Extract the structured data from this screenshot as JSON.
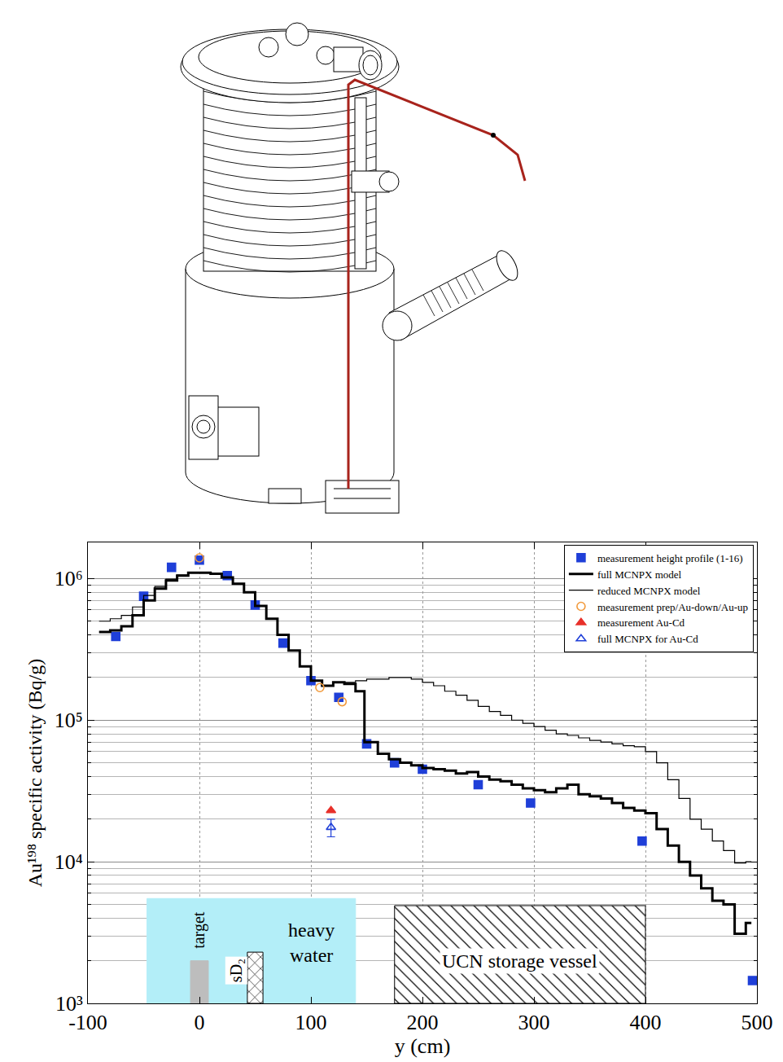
{
  "chart_data": {
    "type": "scatter",
    "x_label": "y (cm)",
    "y_label": "Au¹⁹⁸ specific activity (Bq/g)",
    "xlim": [
      -100,
      500
    ],
    "xticks": [
      -100,
      0,
      100,
      200,
      300,
      400,
      500
    ],
    "ylim": [
      1000,
      1800000
    ],
    "yticks": [
      {
        "value": 1000,
        "label": "10³"
      },
      {
        "value": 10000,
        "label": "10⁴"
      },
      {
        "value": 100000,
        "label": "10⁵"
      },
      {
        "value": 1000000,
        "label": "10⁶"
      }
    ],
    "log": "y",
    "grid": true,
    "legend": "upper right",
    "series": [
      {
        "name": "measurement height profile (1-16)",
        "type": "scatter",
        "marker": "square",
        "color": "#1f3fd8",
        "x": [
          -75,
          -50,
          -25,
          0,
          25,
          50,
          75,
          100,
          125,
          150,
          175,
          200,
          250,
          297,
          397,
          496
        ],
        "values": [
          390000,
          750000,
          1200000,
          1350000,
          1050000,
          650000,
          350000,
          190000,
          145000,
          68000,
          50000,
          45000,
          35000,
          26000,
          14000,
          1450
        ]
      },
      {
        "name": "full MCNPX model",
        "type": "line",
        "line_style": "step",
        "color": "#000000",
        "x": [
          -90,
          -80,
          -70,
          -60,
          -50,
          -40,
          -30,
          -20,
          -10,
          0,
          10,
          20,
          30,
          40,
          50,
          60,
          70,
          80,
          90,
          100,
          110,
          120,
          130,
          140,
          148,
          160,
          170,
          180,
          190,
          200,
          210,
          220,
          230,
          240,
          250,
          260,
          270,
          280,
          290,
          300,
          310,
          320,
          330,
          340,
          350,
          360,
          370,
          380,
          390,
          400,
          410,
          420,
          430,
          440,
          450,
          460,
          470,
          480,
          490,
          495
        ],
        "values": [
          420000,
          430000,
          460000,
          550000,
          700000,
          850000,
          970000,
          1050000,
          1100000,
          1100000,
          1080000,
          1020000,
          920000,
          800000,
          640000,
          520000,
          400000,
          310000,
          240000,
          190000,
          175000,
          185000,
          180000,
          160000,
          70000,
          58000,
          53000,
          50000,
          48000,
          46000,
          45000,
          44000,
          42000,
          43000,
          40000,
          38000,
          37000,
          35000,
          33000,
          32000,
          31000,
          33000,
          35000,
          30000,
          29000,
          28000,
          26000,
          24000,
          23000,
          22000,
          17000,
          13000,
          10000,
          8000,
          6500,
          5300,
          5000,
          3100,
          3700,
          3700
        ]
      },
      {
        "name": "reduced MCNPX model",
        "type": "line",
        "line_style": "step",
        "color": "#000000",
        "x": [
          -90,
          -80,
          -70,
          -60,
          -50,
          -40,
          -30,
          -20,
          -10,
          0,
          10,
          20,
          30,
          40,
          50,
          60,
          70,
          80,
          90,
          100,
          110,
          120,
          130,
          140,
          150,
          160,
          170,
          180,
          190,
          200,
          210,
          220,
          230,
          240,
          250,
          260,
          270,
          280,
          290,
          300,
          310,
          320,
          330,
          340,
          350,
          360,
          370,
          380,
          390,
          400,
          410,
          420,
          430,
          440,
          450,
          460,
          470,
          480,
          490,
          495
        ],
        "values": [
          500000,
          520000,
          550000,
          630000,
          760000,
          880000,
          990000,
          1060000,
          1100000,
          1100000,
          1080000,
          1020000,
          920000,
          800000,
          640000,
          520000,
          400000,
          310000,
          240000,
          190000,
          175000,
          185000,
          185000,
          190000,
          195000,
          195000,
          200000,
          200000,
          195000,
          185000,
          175000,
          160000,
          150000,
          138000,
          125000,
          115000,
          108000,
          100000,
          95000,
          90000,
          85000,
          80000,
          78000,
          75000,
          72000,
          70000,
          68000,
          66000,
          65000,
          60000,
          50000,
          38000,
          28000,
          20000,
          17000,
          14000,
          12000,
          9800,
          10000,
          10000
        ]
      },
      {
        "name": "measurement prep/Au-down/Au-up",
        "type": "scatter",
        "marker": "circle-open",
        "color": "#f29a3c",
        "x": [
          0,
          108,
          128
        ],
        "values": [
          1400000,
          170000,
          135000
        ]
      },
      {
        "name": "measurement Au-Cd",
        "type": "scatter",
        "marker": "triangle",
        "color": "#e8302a",
        "x": [
          118
        ],
        "values": [
          23000
        ]
      },
      {
        "name": "full MCNPX for Au-Cd",
        "type": "scatter",
        "marker": "triangle-open",
        "color": "#1f3fd8",
        "x": [
          118
        ],
        "values": [
          17500
        ],
        "error": [
          2500
        ]
      }
    ],
    "regions": [
      {
        "text": "heavy water",
        "x0": -47,
        "x1": 140,
        "y0": 1000,
        "y1": 5500,
        "color": "#b3eef8",
        "label_x": 100,
        "label_y": 2700
      },
      {
        "text": "target",
        "x0": -8,
        "x1": 8,
        "y0": 1000,
        "y1": 2000,
        "color": "#bdbdbd",
        "label_x": 0,
        "label_y": 3300
      },
      {
        "text": "sD₂",
        "x0": 43,
        "x1": 57,
        "y0": 1000,
        "y1": 2300,
        "color": "#ffffff",
        "marker": "crosshatch",
        "label_x": 33,
        "label_y": 1700
      },
      {
        "text": "UCN storage vessel",
        "x0": 175,
        "x1": 400,
        "y0": 1000,
        "y1": 4900,
        "color": "#ffffff",
        "marker": "hatch",
        "label_x": 287,
        "label_y": 2000
      }
    ]
  }
}
